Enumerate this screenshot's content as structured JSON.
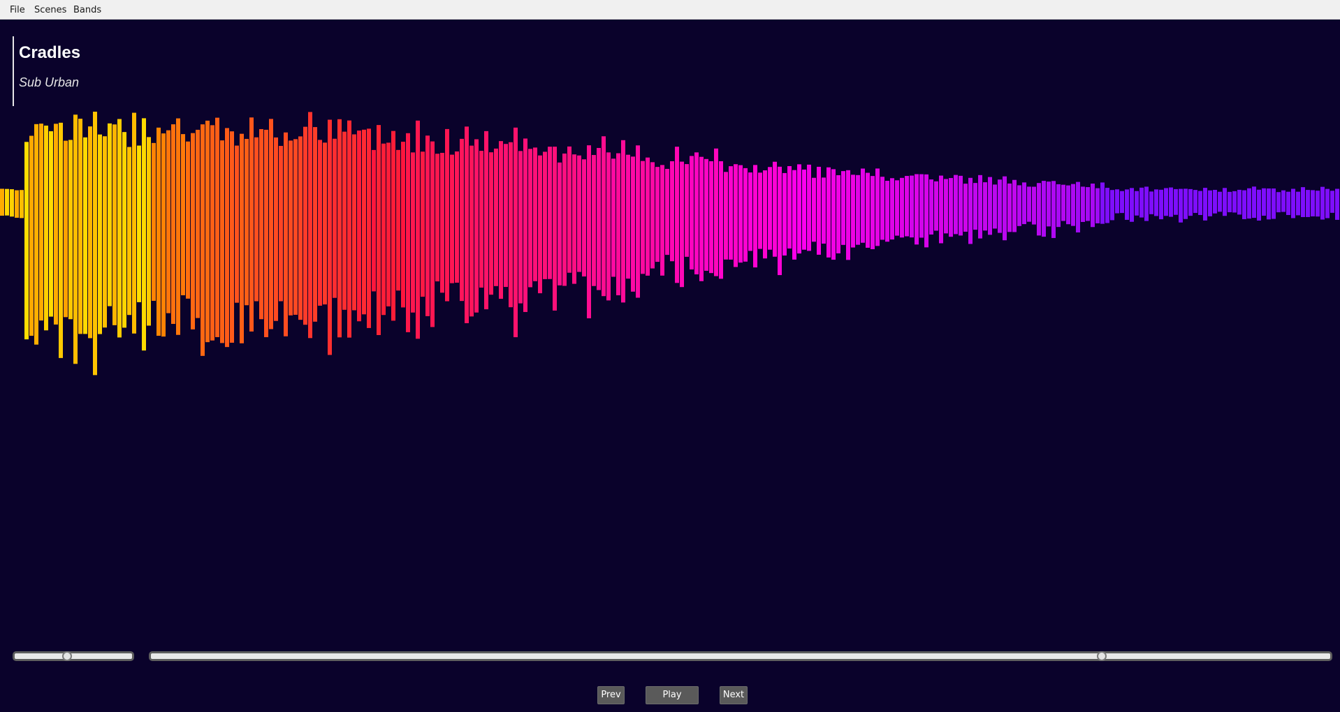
{
  "menu": {
    "items": [
      {
        "label": "File"
      },
      {
        "label": "Scenes"
      },
      {
        "label": "Bands"
      }
    ]
  },
  "track": {
    "title": "Cradles",
    "artist": "Sub Urban"
  },
  "visualizer": {
    "colors": {
      "background": "#0a022b",
      "start": "#ff8a00",
      "peak": "#ffe000",
      "mid": "#ff1a3a",
      "late": "#ff00e0",
      "end": "#7010ff"
    }
  },
  "sliders": {
    "volume": {
      "value": 0.45
    },
    "seek": {
      "value": 0.805
    }
  },
  "controls": {
    "prev_label": "Prev",
    "play_label": "Play",
    "next_label": "Next"
  }
}
